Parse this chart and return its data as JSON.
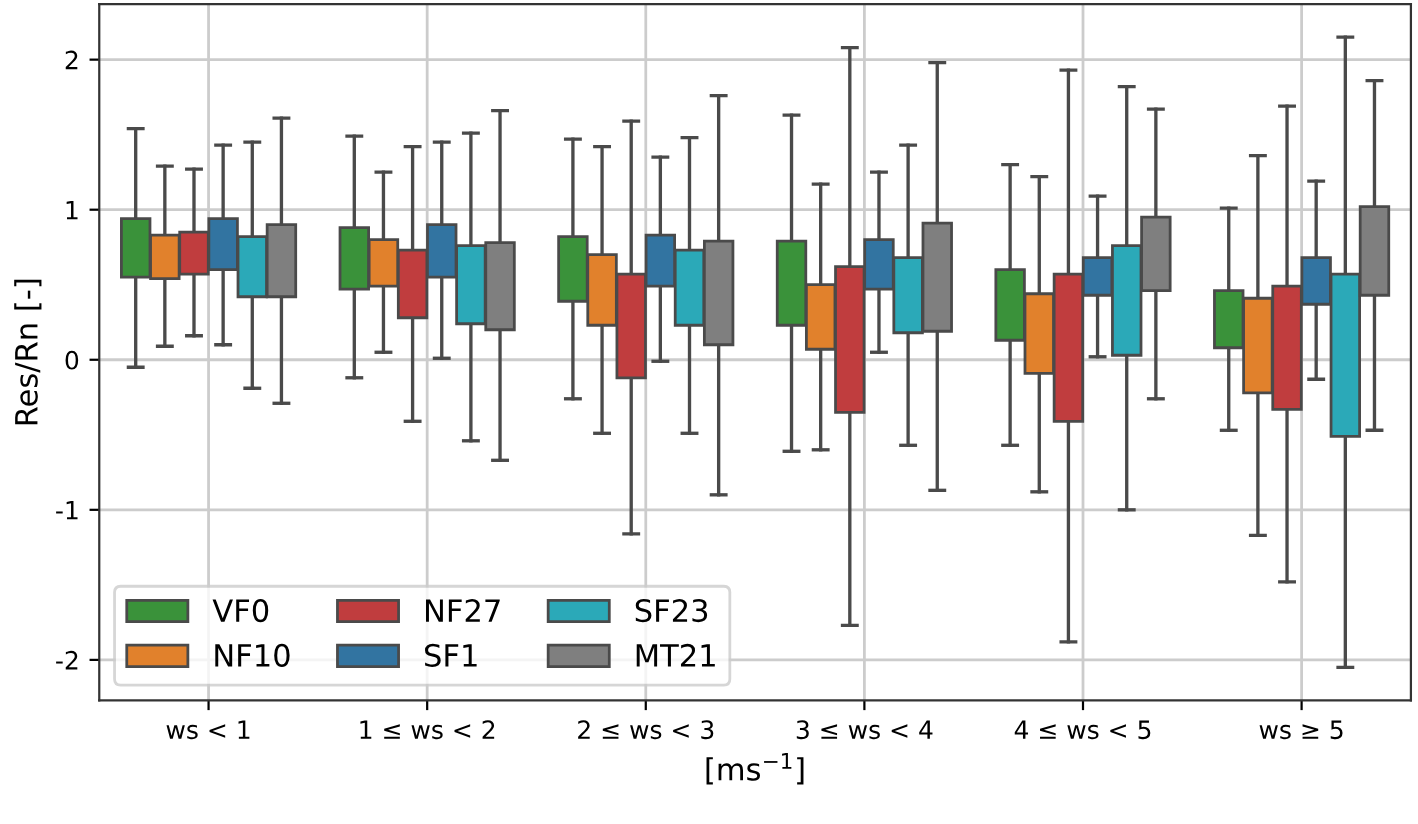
{
  "chart_data": {
    "type": "box",
    "ylabel": "Res/Rn [-]",
    "xlabel": "[ms$^{−1}$]",
    "categories": [
      "ws < 1",
      "1 ≤ ws < 2",
      "2 ≤ ws < 3",
      "3 ≤ ws < 4",
      "4 ≤ ws < 5",
      "ws ≥ 5"
    ],
    "ylim": [
      -2.27,
      2.37
    ],
    "yticks": [
      -2,
      -1,
      0,
      1,
      2
    ],
    "grid": true,
    "legend": "bottom left",
    "series": [
      {
        "name": "VF0",
        "color": "#3a923a",
        "boxes": [
          {
            "low": -0.05,
            "q1": 0.55,
            "median": 0.72,
            "q3": 0.94,
            "high": 1.54
          },
          {
            "low": -0.12,
            "q1": 0.47,
            "median": 0.65,
            "q3": 0.88,
            "high": 1.49
          },
          {
            "low": -0.26,
            "q1": 0.39,
            "median": 0.56,
            "q3": 0.82,
            "high": 1.47
          },
          {
            "low": -0.61,
            "q1": 0.23,
            "median": 0.44,
            "q3": 0.79,
            "high": 1.63
          },
          {
            "low": -0.57,
            "q1": 0.13,
            "median": 0.34,
            "q3": 0.6,
            "high": 1.3
          },
          {
            "low": -0.47,
            "q1": 0.08,
            "median": 0.29,
            "q3": 0.46,
            "high": 1.01
          }
        ]
      },
      {
        "name": "NF10",
        "color": "#e1812c",
        "boxes": [
          {
            "low": 0.09,
            "q1": 0.54,
            "median": 0.7,
            "q3": 0.83,
            "high": 1.29
          },
          {
            "low": 0.05,
            "q1": 0.49,
            "median": 0.66,
            "q3": 0.8,
            "high": 1.25
          },
          {
            "low": -0.49,
            "q1": 0.23,
            "median": 0.46,
            "q3": 0.7,
            "high": 1.42
          },
          {
            "low": -0.6,
            "q1": 0.07,
            "median": 0.31,
            "q3": 0.5,
            "high": 1.17
          },
          {
            "low": -0.88,
            "q1": -0.09,
            "median": 0.23,
            "q3": 0.44,
            "high": 1.22
          },
          {
            "low": -1.17,
            "q1": -0.22,
            "median": 0.14,
            "q3": 0.41,
            "high": 1.36
          }
        ]
      },
      {
        "name": "NF27",
        "color": "#c03d3e",
        "boxes": [
          {
            "low": 0.16,
            "q1": 0.57,
            "median": 0.74,
            "q3": 0.85,
            "high": 1.27
          },
          {
            "low": -0.41,
            "q1": 0.28,
            "median": 0.57,
            "q3": 0.73,
            "high": 1.42
          },
          {
            "low": -1.16,
            "q1": -0.12,
            "median": 0.26,
            "q3": 0.57,
            "high": 1.59
          },
          {
            "low": -1.77,
            "q1": -0.35,
            "median": 0.09,
            "q3": 0.62,
            "high": 2.08
          },
          {
            "low": -1.88,
            "q1": -0.41,
            "median": 0.14,
            "q3": 0.57,
            "high": 1.93
          },
          {
            "low": -1.48,
            "q1": -0.33,
            "median": 0.29,
            "q3": 0.49,
            "high": 1.69
          }
        ]
      },
      {
        "name": "SF1",
        "color": "#3274a1",
        "boxes": [
          {
            "low": 0.1,
            "q1": 0.6,
            "median": 0.79,
            "q3": 0.94,
            "high": 1.43
          },
          {
            "low": 0.01,
            "q1": 0.55,
            "median": 0.69,
            "q3": 0.9,
            "high": 1.45
          },
          {
            "low": -0.01,
            "q1": 0.49,
            "median": 0.62,
            "q3": 0.83,
            "high": 1.35
          },
          {
            "low": 0.05,
            "q1": 0.47,
            "median": 0.64,
            "q3": 0.8,
            "high": 1.25
          },
          {
            "low": 0.02,
            "q1": 0.43,
            "median": 0.55,
            "q3": 0.68,
            "high": 1.09
          },
          {
            "low": -0.13,
            "q1": 0.37,
            "median": 0.51,
            "q3": 0.68,
            "high": 1.19
          }
        ]
      },
      {
        "name": "SF23",
        "color": "#2ba9b8",
        "boxes": [
          {
            "low": -0.19,
            "q1": 0.42,
            "median": 0.63,
            "q3": 0.82,
            "high": 1.45
          },
          {
            "low": -0.54,
            "q1": 0.24,
            "median": 0.55,
            "q3": 0.76,
            "high": 1.51
          },
          {
            "low": -0.49,
            "q1": 0.23,
            "median": 0.51,
            "q3": 0.73,
            "high": 1.48
          },
          {
            "low": -0.57,
            "q1": 0.18,
            "median": 0.42,
            "q3": 0.68,
            "high": 1.43
          },
          {
            "low": -1.0,
            "q1": 0.03,
            "median": 0.46,
            "q3": 0.76,
            "high": 1.82
          },
          {
            "low": -2.05,
            "q1": -0.51,
            "median": 0.14,
            "q3": 0.57,
            "high": 2.15
          }
        ]
      },
      {
        "name": "MT21",
        "color": "#7f7f7f",
        "boxes": [
          {
            "low": -0.29,
            "q1": 0.42,
            "median": 0.67,
            "q3": 0.9,
            "high": 1.61
          },
          {
            "low": -0.67,
            "q1": 0.2,
            "median": 0.52,
            "q3": 0.78,
            "high": 1.66
          },
          {
            "low": -0.9,
            "q1": 0.1,
            "median": 0.47,
            "q3": 0.79,
            "high": 1.76
          },
          {
            "low": -0.87,
            "q1": 0.19,
            "median": 0.66,
            "q3": 0.91,
            "high": 1.98
          },
          {
            "low": -0.26,
            "q1": 0.46,
            "median": 0.75,
            "q3": 0.95,
            "high": 1.67
          },
          {
            "low": -0.47,
            "q1": 0.43,
            "median": 0.74,
            "q3": 1.02,
            "high": 1.86
          }
        ]
      }
    ]
  }
}
